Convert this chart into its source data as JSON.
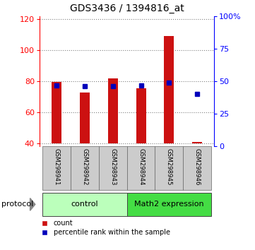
{
  "title": "GDS3436 / 1394816_at",
  "samples": [
    "GSM298941",
    "GSM298942",
    "GSM298943",
    "GSM298944",
    "GSM298945",
    "GSM298946"
  ],
  "count_values": [
    79.5,
    72.5,
    82.0,
    75.5,
    109.0,
    41.0
  ],
  "percentile_values": [
    47,
    46,
    46,
    47,
    49,
    40
  ],
  "ylim_left": [
    38,
    122
  ],
  "ylim_right": [
    0,
    100
  ],
  "yticks_left": [
    40,
    60,
    80,
    100,
    120
  ],
  "ytick_labels_right": [
    "0",
    "25",
    "50",
    "75",
    "100%"
  ],
  "bar_color": "#cc1111",
  "dot_color": "#0000bb",
  "bar_width": 0.35,
  "control_color": "#bbffbb",
  "math2_color": "#44dd44",
  "sample_bg_color": "#cccccc",
  "legend_count_color": "#cc1111",
  "legend_dot_color": "#0000bb",
  "title_fontsize": 10,
  "tick_fontsize": 8,
  "label_fontsize": 8
}
